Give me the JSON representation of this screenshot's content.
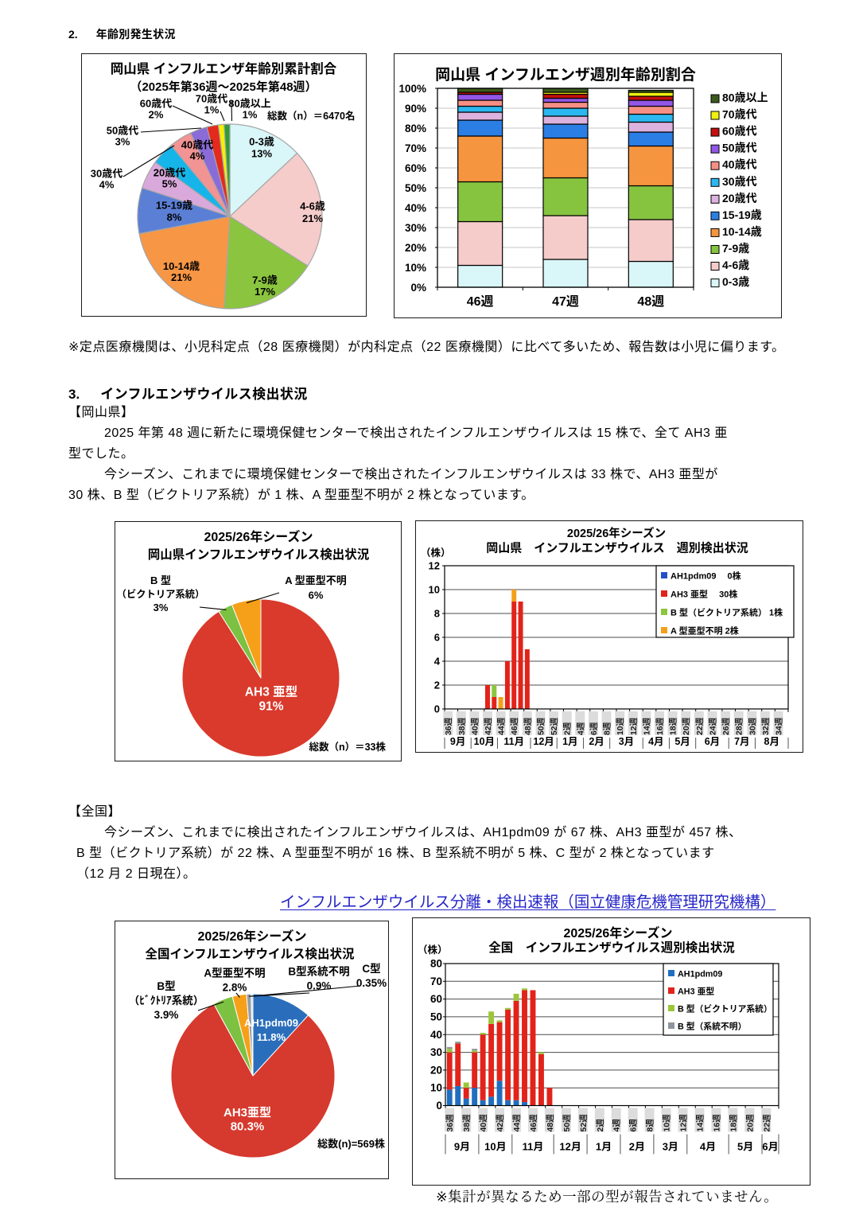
{
  "page": {
    "section2": {
      "num": "2.",
      "title": "年齢別発生状況"
    },
    "note_teiten": "※定点医療機関は、小児科定点（28 医療機関）が内科定点（22 医療機関）に比べて多いため、報告数は小児に偏ります。",
    "section3": {
      "num": "3.",
      "title": "インフルエンザウイルス検出状況"
    },
    "okayama_label": "【岡山県】",
    "para_okayama_l1": "2025 年第 48 週に新たに環境保健センターで検出されたインフルエンザウイルスは 15 株で、全て AH3 亜",
    "para_okayama_l2": "型でした。",
    "para_okayama_l3": "今シーズン、これまでに環境保健センターで検出されたインフルエンザウイルスは 33 株で、AH3 亜型が",
    "para_okayama_l4": "30 株、B 型（ビクトリア系統）が 1 株、A 型亜型不明が 2 株となっています。",
    "zenkoku_label": "【全国】",
    "para_zenkoku_l1": "今シーズン、これまでに検出されたインフルエンザウイルスは、AH1pdm09 が 67 株、AH3 亜型が 457 株、",
    "para_zenkoku_l2": "B 型（ビクトリア系統）が 22 株、A 型亜型不明が 16 株、B 型系統不明が 5 株、C 型が 2 株となっています",
    "para_zenkoku_l3": "（12 月 2 日現在）。",
    "link_text": "インフルエンザウイルス分離・検出速報（国立健康危機管理研究機構）",
    "link_color": "#2525C8",
    "text_color": "#000000",
    "background_color": "#FFFFFF",
    "note_bottom": "※集計が異なるため一部の型が報告されていません。"
  },
  "chart_data": [
    {
      "id": "okayama-age-pie",
      "type": "pie",
      "title_lines": [
        "岡山県 インフルエンザ年齢別累計割合",
        "（2025年第36週～2025年第48週）"
      ],
      "total_label": "総数（n）＝6470名",
      "slices": [
        {
          "name": "0-3歳",
          "pct": "13%",
          "value": 13,
          "color": "#D9F6F8",
          "label_lines": [
            "0-3歳",
            "13%"
          ]
        },
        {
          "name": "4-6歳",
          "pct": "21%",
          "value": 21,
          "color": "#F5CCCA",
          "label_lines": [
            "4-6歳",
            "21%"
          ]
        },
        {
          "name": "7-9歳",
          "pct": "17%",
          "value": 17,
          "color": "#8BC53F",
          "label_lines": [
            "7-9歳",
            "17%"
          ]
        },
        {
          "name": "10-14歳",
          "pct": "21%",
          "value": 21,
          "color": "#F79645",
          "label_lines": [
            "10-14歳",
            "21%"
          ]
        },
        {
          "name": "15-19歳",
          "pct": "8%",
          "value": 8,
          "color": "#5B7FD5",
          "label_lines": [
            "15-19歳",
            "8%"
          ]
        },
        {
          "name": "20歳代",
          "pct": "5%",
          "value": 5,
          "color": "#D9A9DB",
          "label_lines": [
            "20歳代",
            "5%"
          ]
        },
        {
          "name": "30歳代",
          "pct": "4%",
          "value": 4,
          "color": "#16B5E9",
          "label_lines": [
            "30歳代",
            "4%"
          ]
        },
        {
          "name": "40歳代",
          "pct": "4%",
          "value": 4,
          "color": "#F29394",
          "label_lines": [
            "40歳代",
            "4%"
          ]
        },
        {
          "name": "50歳代",
          "pct": "3%",
          "value": 3,
          "color": "#8A6BD8",
          "label_lines": [
            "50歳代",
            "3%"
          ]
        },
        {
          "name": "60歳代",
          "pct": "2%",
          "value": 2,
          "color": "#E42A1C",
          "label_lines": [
            "60歳代",
            "2%"
          ]
        },
        {
          "name": "70歳代",
          "pct": "1%",
          "value": 1,
          "color": "#F5F000",
          "label_lines": [
            "70歳代",
            "1%"
          ]
        },
        {
          "name": "80歳以上",
          "pct": "1%",
          "value": 1,
          "color": "#2E9B38",
          "label_lines": [
            "80歳以上",
            "1%"
          ]
        }
      ]
    },
    {
      "id": "okayama-age-weekly-bar",
      "type": "stacked_bar",
      "title_lines": [
        "岡山県 インフルエンザ週別年齢別割合"
      ],
      "categories": [
        "46週",
        "47週",
        "48週"
      ],
      "yticks": [
        "0%",
        "10%",
        "20%",
        "30%",
        "40%",
        "50%",
        "60%",
        "70%",
        "80%",
        "90%",
        "100%"
      ],
      "ylim": [
        0,
        100
      ],
      "series": [
        {
          "name": "0-3歳",
          "color": "#D9F6F8",
          "values": [
            11,
            14,
            13
          ]
        },
        {
          "name": "4-6歳",
          "color": "#F5CCCA",
          "values": [
            22,
            22,
            21
          ]
        },
        {
          "name": "7-9歳",
          "color": "#86C440",
          "values": [
            20,
            19,
            17
          ]
        },
        {
          "name": "10-14歳",
          "color": "#F6953F",
          "values": [
            23,
            20,
            20
          ]
        },
        {
          "name": "15-19歳",
          "color": "#2B7FE4",
          "values": [
            8,
            7,
            7
          ]
        },
        {
          "name": "20歳代",
          "color": "#DCB2DF",
          "values": [
            4,
            4,
            5
          ]
        },
        {
          "name": "30歳代",
          "color": "#2BB7EF",
          "values": [
            3,
            4,
            4
          ]
        },
        {
          "name": "40歳代",
          "color": "#F78F85",
          "values": [
            3,
            3,
            4
          ]
        },
        {
          "name": "50歳代",
          "color": "#9257E6",
          "values": [
            3,
            2,
            3
          ]
        },
        {
          "name": "60歳代",
          "color": "#C40F0C",
          "values": [
            1,
            2,
            2
          ]
        },
        {
          "name": "70歳代",
          "color": "#EFF010",
          "values": [
            0,
            1,
            2
          ]
        },
        {
          "name": "80歳以上",
          "color": "#3C5A1C",
          "values": [
            2,
            2,
            1
          ]
        }
      ],
      "legend_order": "reverse",
      "legend_labels": [
        "80歳以上",
        "70歳代",
        "60歳代",
        "50歳代",
        "40歳代",
        "30歳代",
        "20歳代",
        "15-19歳",
        "10-14歳",
        "7-9歳",
        "4-6歳",
        "0-3歳"
      ]
    },
    {
      "id": "okayama-virus-pie",
      "type": "pie",
      "title_lines": [
        "2025/26年シーズン",
        "岡山県インフルエンザウイルス検出状況"
      ],
      "total_label": "総数（n）＝33株",
      "slices": [
        {
          "name": "AH3 亜型",
          "pct": "91%",
          "value": 91,
          "color": "#D93A2C",
          "label_lines": [
            "AH3 亜型",
            "91%"
          ]
        },
        {
          "name": "B 型（ビクトリア系統）",
          "pct": "3%",
          "value": 3,
          "color": "#7CC142",
          "label_lines": [
            "B 型",
            "（ビクトリア系統）",
            "3%"
          ]
        },
        {
          "name": "A 型亜型不明",
          "pct": "6%",
          "value": 6,
          "color": "#F6A019",
          "label_lines": [
            "A 型亜型不明",
            "6%"
          ]
        }
      ]
    },
    {
      "id": "okayama-virus-weekly-bar",
      "type": "weekly_bar",
      "title_lines": [
        "2025/26年シーズン",
        "岡山県　インフルエンザウイルス　週別検出状況"
      ],
      "y_unit": "（株）",
      "ylim": [
        0,
        12
      ],
      "yticks": [
        "0",
        "2",
        "4",
        "6",
        "8",
        "10",
        "12"
      ],
      "week_ticks": [
        "36週",
        "38週",
        "40週",
        "42週",
        "44週",
        "46週",
        "48週",
        "50週",
        "52週",
        "2週",
        "4週",
        "6週",
        "8週",
        "10週",
        "12週",
        "14週",
        "16週",
        "18週",
        "20週",
        "22週",
        "24週",
        "26週",
        "28週",
        "30週",
        "32週",
        "34週"
      ],
      "months": [
        "9月",
        "10月",
        "11月",
        "12月",
        "1月",
        "2月",
        "3月",
        "4月",
        "5月",
        "6月",
        "7月",
        "8月"
      ],
      "month_spans": [
        4,
        4,
        5,
        4,
        4,
        4,
        5,
        4,
        4,
        5,
        4,
        5
      ],
      "n_slots": 52,
      "series": [
        {
          "name": "AH1pdm09",
          "color": "#2350C8",
          "bars": {}
        },
        {
          "name": "AH3 亜型",
          "color": "#E2231A",
          "bars": {
            "6": 2,
            "7": 1,
            "9": 4,
            "10": 9,
            "11": 9,
            "12": 5
          }
        },
        {
          "name": "B 型（ビクトリア系統）",
          "color": "#8CC63E",
          "bars": {
            "7": 1
          }
        },
        {
          "name": "A 型亜型不明",
          "color": "#F5A01A",
          "bars": {
            "8": 1,
            "10": 1
          }
        }
      ],
      "legend_labels": [
        "AH1pdm09　 0株",
        "AH3 亜型　 30株",
        "B 型（ビクトリア系統） 1株",
        "A 型亜型不明 2株"
      ]
    },
    {
      "id": "national-virus-pie",
      "type": "pie",
      "title_lines": [
        "2025/26年シーズン",
        "全国インフルエンザウイルス検出状況"
      ],
      "total_label": "総数(n)=569株",
      "slices": [
        {
          "name": "AH1pdm09",
          "pct": "11.8%",
          "value": 11.8,
          "color": "#2A6EBB",
          "label_lines": [
            "AH1pdm09",
            "11.8%"
          ]
        },
        {
          "name": "AH3亜型",
          "pct": "80.3%",
          "value": 80.3,
          "color": "#D6392D",
          "label_lines": [
            "AH3亜型",
            "80.3%"
          ]
        },
        {
          "name": "B型（ビクトリア系統）",
          "pct": "3.9%",
          "value": 3.9,
          "color": "#7CC142",
          "label_lines": [
            "B型",
            "（ﾋﾞｸﾄﾘｱ系統）",
            "3.9%"
          ]
        },
        {
          "name": "A型亜型不明",
          "pct": "2.8%",
          "value": 2.8,
          "color": "#F6A019",
          "label_lines": [
            "A型亜型不明",
            "2.8%"
          ]
        },
        {
          "name": "B型系統不明",
          "pct": "0.9%",
          "value": 0.9,
          "color": "#959CA4",
          "label_lines": [
            "B型系統不明",
            "0.9%"
          ]
        },
        {
          "name": "C型",
          "pct": "0.35%",
          "value": 0.35,
          "color": "#CBD9EB",
          "label_lines": [
            "C型",
            "0.35%"
          ]
        }
      ]
    },
    {
      "id": "national-virus-weekly-bar",
      "type": "weekly_bar",
      "title_lines": [
        "2025/26年シーズン",
        "全国　インフルエンザウイルス週別検出状況"
      ],
      "y_unit": "（株）",
      "ylim": [
        0,
        80
      ],
      "yticks": [
        "0",
        "10",
        "20",
        "30",
        "40",
        "50",
        "60",
        "70",
        "80"
      ],
      "week_ticks": [
        "36週",
        "38週",
        "40週",
        "42週",
        "44週",
        "46週",
        "48週",
        "50週",
        "52週",
        "2週",
        "4週",
        "6週",
        "8週",
        "10週",
        "12週",
        "14週",
        "16週",
        "18週",
        "20週",
        "22週"
      ],
      "months": [
        "9月",
        "10月",
        "11月",
        "12月",
        "1月",
        "2月",
        "3月",
        "4月",
        "5月",
        "6月"
      ],
      "month_spans": [
        4,
        4,
        5,
        4,
        4,
        4,
        4,
        5,
        4,
        2
      ],
      "n_slots": 40,
      "series": [
        {
          "name": "AH1pdm09",
          "color": "#1F6EC0",
          "bars": {
            "0": 9,
            "1": 11,
            "2": 4,
            "3": 10,
            "4": 3,
            "5": 5,
            "6": 14,
            "7": 3,
            "8": 3,
            "9": 2
          }
        },
        {
          "name": "AH3 亜型",
          "color": "#E2231A",
          "bars": {
            "0": 21,
            "1": 24,
            "2": 6,
            "3": 20,
            "4": 37,
            "5": 41,
            "6": 33,
            "7": 51,
            "8": 56,
            "9": 63,
            "10": 65,
            "11": 29,
            "12": 10
          }
        },
        {
          "name": "B 型（ビクトリア系統）",
          "color": "#9DC53A",
          "bars": {
            "0": 2,
            "2": 3,
            "3": 1,
            "4": 1,
            "5": 7,
            "6": 1,
            "7": 1,
            "8": 4,
            "9": 1,
            "11": 1
          }
        },
        {
          "name": "B 型（系統不明）",
          "color": "#8E959D",
          "bars": {
            "0": 1,
            "1": 1,
            "3": 1
          }
        }
      ],
      "legend_labels": [
        "AH1pdm09",
        "AH3 亜型",
        "B 型（ビクトリア系統）",
        "B 型（系統不明）"
      ]
    }
  ]
}
